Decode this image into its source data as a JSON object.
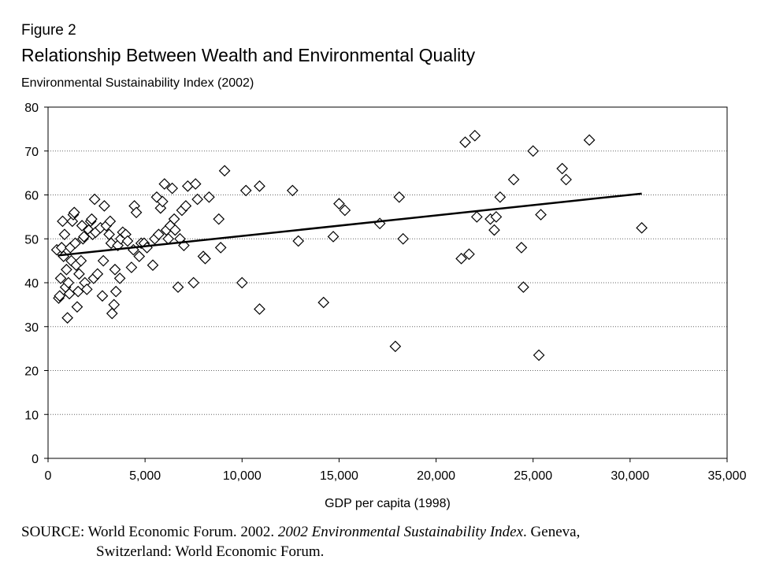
{
  "figure_label": "Figure 2",
  "title": "Relationship Between Wealth and Environmental Quality",
  "source": {
    "prefix": "SOURCE: World Economic Forum. 2002. ",
    "italic": "2002 Environmental Sustainability Index",
    "suffix": ". Geneva,",
    "line2": "Switzerland: World Economic Forum."
  },
  "chart_data": {
    "type": "scatter",
    "ylabel": "Environmental Sustainability Index (2002)",
    "xlabel": "GDP per capita (1998)",
    "xlim": [
      0,
      35000
    ],
    "ylim": [
      0,
      80
    ],
    "x_ticks": [
      0,
      5000,
      10000,
      15000,
      20000,
      25000,
      30000,
      35000
    ],
    "x_tick_labels": [
      "0",
      "5,000",
      "10,000",
      "15,000",
      "20,000",
      "25,000",
      "30,000",
      "35,000"
    ],
    "y_ticks": [
      0,
      10,
      20,
      30,
      40,
      50,
      60,
      70,
      80
    ],
    "y_tick_labels": [
      "0",
      "10",
      "20",
      "30",
      "40",
      "50",
      "60",
      "70",
      "80"
    ],
    "grid": "horizontal dotted",
    "marker": "diamond-open",
    "trendline": {
      "x": [
        500,
        30600
      ],
      "y": [
        46.2,
        60.3
      ]
    },
    "points": [
      [
        450,
        47.5
      ],
      [
        550,
        36.5
      ],
      [
        600,
        37
      ],
      [
        650,
        41
      ],
      [
        700,
        48
      ],
      [
        750,
        54
      ],
      [
        800,
        46
      ],
      [
        850,
        51
      ],
      [
        900,
        39
      ],
      [
        950,
        43
      ],
      [
        1000,
        32
      ],
      [
        1050,
        40
      ],
      [
        1100,
        37.5
      ],
      [
        1150,
        48
      ],
      [
        1200,
        45
      ],
      [
        1250,
        54
      ],
      [
        1300,
        55.5
      ],
      [
        1350,
        56
      ],
      [
        1400,
        49
      ],
      [
        1450,
        44
      ],
      [
        1500,
        34.5
      ],
      [
        1550,
        38
      ],
      [
        1600,
        42
      ],
      [
        1700,
        45
      ],
      [
        1750,
        53
      ],
      [
        1800,
        50
      ],
      [
        1850,
        50.5
      ],
      [
        1900,
        40
      ],
      [
        2000,
        38.5
      ],
      [
        2100,
        52
      ],
      [
        2200,
        54
      ],
      [
        2250,
        54.5
      ],
      [
        2300,
        51
      ],
      [
        2350,
        41
      ],
      [
        2400,
        59
      ],
      [
        2450,
        51.5
      ],
      [
        2550,
        42
      ],
      [
        2700,
        52.5
      ],
      [
        2800,
        37
      ],
      [
        2850,
        45
      ],
      [
        2900,
        57.5
      ],
      [
        3000,
        53
      ],
      [
        3150,
        51
      ],
      [
        3200,
        54
      ],
      [
        3250,
        49
      ],
      [
        3300,
        33
      ],
      [
        3400,
        35
      ],
      [
        3450,
        43
      ],
      [
        3500,
        38
      ],
      [
        3600,
        48.5
      ],
      [
        3700,
        41
      ],
      [
        3750,
        50
      ],
      [
        3850,
        51.5
      ],
      [
        4000,
        51
      ],
      [
        4100,
        49.5
      ],
      [
        4300,
        43.5
      ],
      [
        4400,
        47.5
      ],
      [
        4450,
        57.5
      ],
      [
        4550,
        56
      ],
      [
        4700,
        46
      ],
      [
        4800,
        49
      ],
      [
        4950,
        49
      ],
      [
        5100,
        48
      ],
      [
        5400,
        44
      ],
      [
        5500,
        50
      ],
      [
        5600,
        59.5
      ],
      [
        5700,
        51
      ],
      [
        5800,
        57
      ],
      [
        5900,
        58.5
      ],
      [
        6000,
        62.5
      ],
      [
        6100,
        52
      ],
      [
        6200,
        50
      ],
      [
        6300,
        53
      ],
      [
        6400,
        61.5
      ],
      [
        6500,
        54.5
      ],
      [
        6550,
        52
      ],
      [
        6700,
        39
      ],
      [
        6800,
        50
      ],
      [
        6900,
        56.5
      ],
      [
        7000,
        48.5
      ],
      [
        7100,
        57.5
      ],
      [
        7200,
        62
      ],
      [
        7500,
        40
      ],
      [
        7600,
        62.5
      ],
      [
        7700,
        59
      ],
      [
        8000,
        46
      ],
      [
        8100,
        45.5
      ],
      [
        8300,
        59.5
      ],
      [
        8800,
        54.5
      ],
      [
        8900,
        48
      ],
      [
        9100,
        65.5
      ],
      [
        10000,
        40
      ],
      [
        10200,
        61
      ],
      [
        10900,
        62
      ],
      [
        10900,
        34
      ],
      [
        12600,
        61
      ],
      [
        12900,
        49.5
      ],
      [
        14200,
        35.5
      ],
      [
        14700,
        50.5
      ],
      [
        15000,
        58
      ],
      [
        15300,
        56.5
      ],
      [
        17100,
        53.5
      ],
      [
        17900,
        25.5
      ],
      [
        18100,
        59.5
      ],
      [
        18300,
        50
      ],
      [
        21300,
        45.5
      ],
      [
        21500,
        72
      ],
      [
        21700,
        46.5
      ],
      [
        22000,
        73.5
      ],
      [
        22100,
        55
      ],
      [
        22800,
        54.5
      ],
      [
        23000,
        52
      ],
      [
        23100,
        55
      ],
      [
        23300,
        59.5
      ],
      [
        24000,
        63.5
      ],
      [
        24400,
        48
      ],
      [
        24500,
        39
      ],
      [
        25000,
        70
      ],
      [
        25300,
        23.5
      ],
      [
        25400,
        55.5
      ],
      [
        26500,
        66
      ],
      [
        26700,
        63.5
      ],
      [
        27900,
        72.5
      ],
      [
        30600,
        52.5
      ]
    ]
  }
}
